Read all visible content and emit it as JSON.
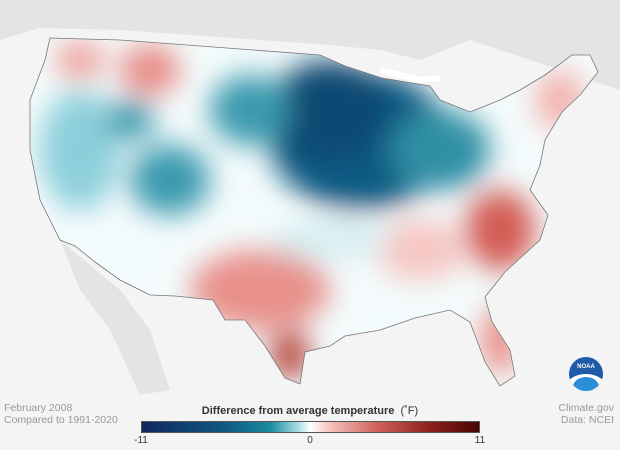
{
  "caption": {
    "date": "February 2008",
    "baseline": "Compared to 1991-2020"
  },
  "credit": {
    "site": "Climate.gov",
    "source": "Data: NCEI"
  },
  "legend": {
    "title": "Difference from average temperature",
    "unit": "(˚F)",
    "min": "-11",
    "mid": "0",
    "max": "11"
  },
  "logo": {
    "text": "NOAA"
  },
  "colors": {
    "cold": "#12275e",
    "cool": "#1a8a9e",
    "neutral": "#ffffff",
    "warm": "#d06058",
    "hot": "#4a0504"
  }
}
